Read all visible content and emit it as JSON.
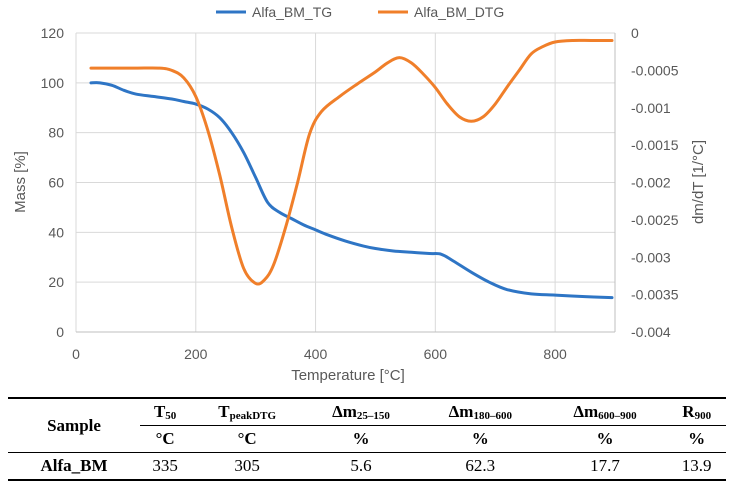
{
  "chart_data": {
    "type": "line",
    "legend_position": "top",
    "grid": true,
    "x_label": "Temperature [°C]",
    "x_range": [
      0,
      900
    ],
    "x_ticks": [
      "0",
      "200",
      "400",
      "600",
      "800"
    ],
    "y_left_label": "Mass [%]",
    "y_left_range": [
      0,
      120
    ],
    "y_left_ticks": [
      "0",
      "20",
      "40",
      "60",
      "80",
      "100",
      "120"
    ],
    "y_right_label": "dm/dT [1/°C]",
    "y_right_range": [
      -0.004,
      0
    ],
    "y_right_ticks": [
      "-0.004",
      "-0.0035",
      "-0.003",
      "-0.0025",
      "-0.002",
      "-0.0015",
      "-0.001",
      "-0.0005",
      "0"
    ],
    "series": [
      {
        "name": "Alfa_BM_TG",
        "axis": "left",
        "color": "#2e75c5",
        "points": [
          [
            25,
            100
          ],
          [
            40,
            100
          ],
          [
            60,
            99
          ],
          [
            80,
            97
          ],
          [
            100,
            95.5
          ],
          [
            130,
            94.5
          ],
          [
            160,
            93.5
          ],
          [
            180,
            92.5
          ],
          [
            200,
            91.5
          ],
          [
            220,
            89.5
          ],
          [
            240,
            86
          ],
          [
            260,
            80
          ],
          [
            280,
            72
          ],
          [
            300,
            62
          ],
          [
            320,
            52
          ],
          [
            340,
            48
          ],
          [
            360,
            45.5
          ],
          [
            380,
            43
          ],
          [
            400,
            41
          ],
          [
            420,
            39
          ],
          [
            450,
            36.5
          ],
          [
            480,
            34.5
          ],
          [
            500,
            33.5
          ],
          [
            530,
            32.5
          ],
          [
            560,
            32
          ],
          [
            590,
            31.5
          ],
          [
            610,
            31.2
          ],
          [
            630,
            28.5
          ],
          [
            660,
            24
          ],
          [
            690,
            20
          ],
          [
            720,
            17
          ],
          [
            760,
            15.3
          ],
          [
            800,
            14.8
          ],
          [
            850,
            14.2
          ],
          [
            895,
            13.8
          ]
        ]
      },
      {
        "name": "Alfa_BM_DTG",
        "axis": "right",
        "color": "#f07f2a",
        "points": [
          [
            25,
            -0.00047
          ],
          [
            60,
            -0.00047
          ],
          [
            100,
            -0.00047
          ],
          [
            140,
            -0.00047
          ],
          [
            160,
            -0.0005
          ],
          [
            180,
            -0.0006
          ],
          [
            200,
            -0.00085
          ],
          [
            220,
            -0.0013
          ],
          [
            240,
            -0.0019
          ],
          [
            260,
            -0.0026
          ],
          [
            280,
            -0.00315
          ],
          [
            300,
            -0.00335
          ],
          [
            315,
            -0.0033
          ],
          [
            330,
            -0.0031
          ],
          [
            350,
            -0.0026
          ],
          [
            370,
            -0.002
          ],
          [
            390,
            -0.00135
          ],
          [
            410,
            -0.00105
          ],
          [
            440,
            -0.00085
          ],
          [
            470,
            -0.00068
          ],
          [
            500,
            -0.00052
          ],
          [
            520,
            -0.0004
          ],
          [
            540,
            -0.00033
          ],
          [
            560,
            -0.0004
          ],
          [
            580,
            -0.00055
          ],
          [
            600,
            -0.00073
          ],
          [
            620,
            -0.00095
          ],
          [
            640,
            -0.00112
          ],
          [
            660,
            -0.00118
          ],
          [
            680,
            -0.00112
          ],
          [
            700,
            -0.00095
          ],
          [
            720,
            -0.00072
          ],
          [
            740,
            -0.0005
          ],
          [
            760,
            -0.00028
          ],
          [
            780,
            -0.00018
          ],
          [
            800,
            -0.00012
          ],
          [
            830,
            -0.0001
          ],
          [
            860,
            -0.0001
          ],
          [
            895,
            -0.0001
          ]
        ]
      }
    ]
  },
  "table": {
    "sample_header": "Sample",
    "columns": [
      {
        "symbol": "T",
        "sub": "50",
        "unit": "°C"
      },
      {
        "symbol": "T",
        "sub": "peakDTG",
        "unit": "°C"
      },
      {
        "symbol": "Δm",
        "sub": "25–150",
        "unit": "%"
      },
      {
        "symbol": "Δm",
        "sub": "180–600",
        "unit": "%"
      },
      {
        "symbol": "Δm",
        "sub": "600–900",
        "unit": "%"
      },
      {
        "symbol": "R",
        "sub": "900",
        "unit": "%"
      }
    ],
    "rows": [
      {
        "sample": "Alfa_BM",
        "values": [
          "335",
          "305",
          "5.6",
          "62.3",
          "17.7",
          "13.9"
        ]
      }
    ]
  }
}
